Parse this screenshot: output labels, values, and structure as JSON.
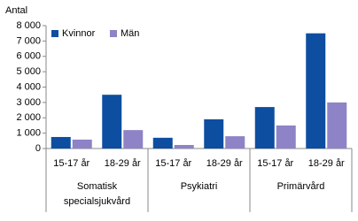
{
  "chart_data": {
    "type": "bar",
    "y_label": "Antal",
    "groups": [
      {
        "label": "Somatisk specialsjukvård",
        "categories": [
          "15-17 år",
          "18-29 år"
        ]
      },
      {
        "label": "Psykiatri",
        "categories": [
          "15-17 år",
          "18-29 år"
        ]
      },
      {
        "label": "Primärvård",
        "categories": [
          "15-17 år",
          "18-29 år"
        ]
      }
    ],
    "series": [
      {
        "name": "Kvinnor",
        "color": "#0d4ea1",
        "values": [
          750,
          3500,
          700,
          1900,
          2700,
          7500
        ]
      },
      {
        "name": "Män",
        "color": "#8e83c6",
        "values": [
          580,
          1200,
          230,
          800,
          1500,
          3000
        ]
      }
    ],
    "ylim": [
      0,
      8000
    ],
    "yticks": [
      0,
      {
        "value": 1000,
        "label": "1 000"
      },
      {
        "value": 2000,
        "label": "2 000"
      },
      {
        "value": 3000,
        "label": "3 000"
      },
      {
        "value": 4000,
        "label": "4 000"
      },
      {
        "value": 5000,
        "label": "5 000"
      },
      {
        "value": 6000,
        "label": "6 000"
      },
      {
        "value": 7000,
        "label": "7 000"
      },
      {
        "value": 8000,
        "label": "8 000"
      }
    ],
    "legend": "top-left",
    "grid": false
  }
}
